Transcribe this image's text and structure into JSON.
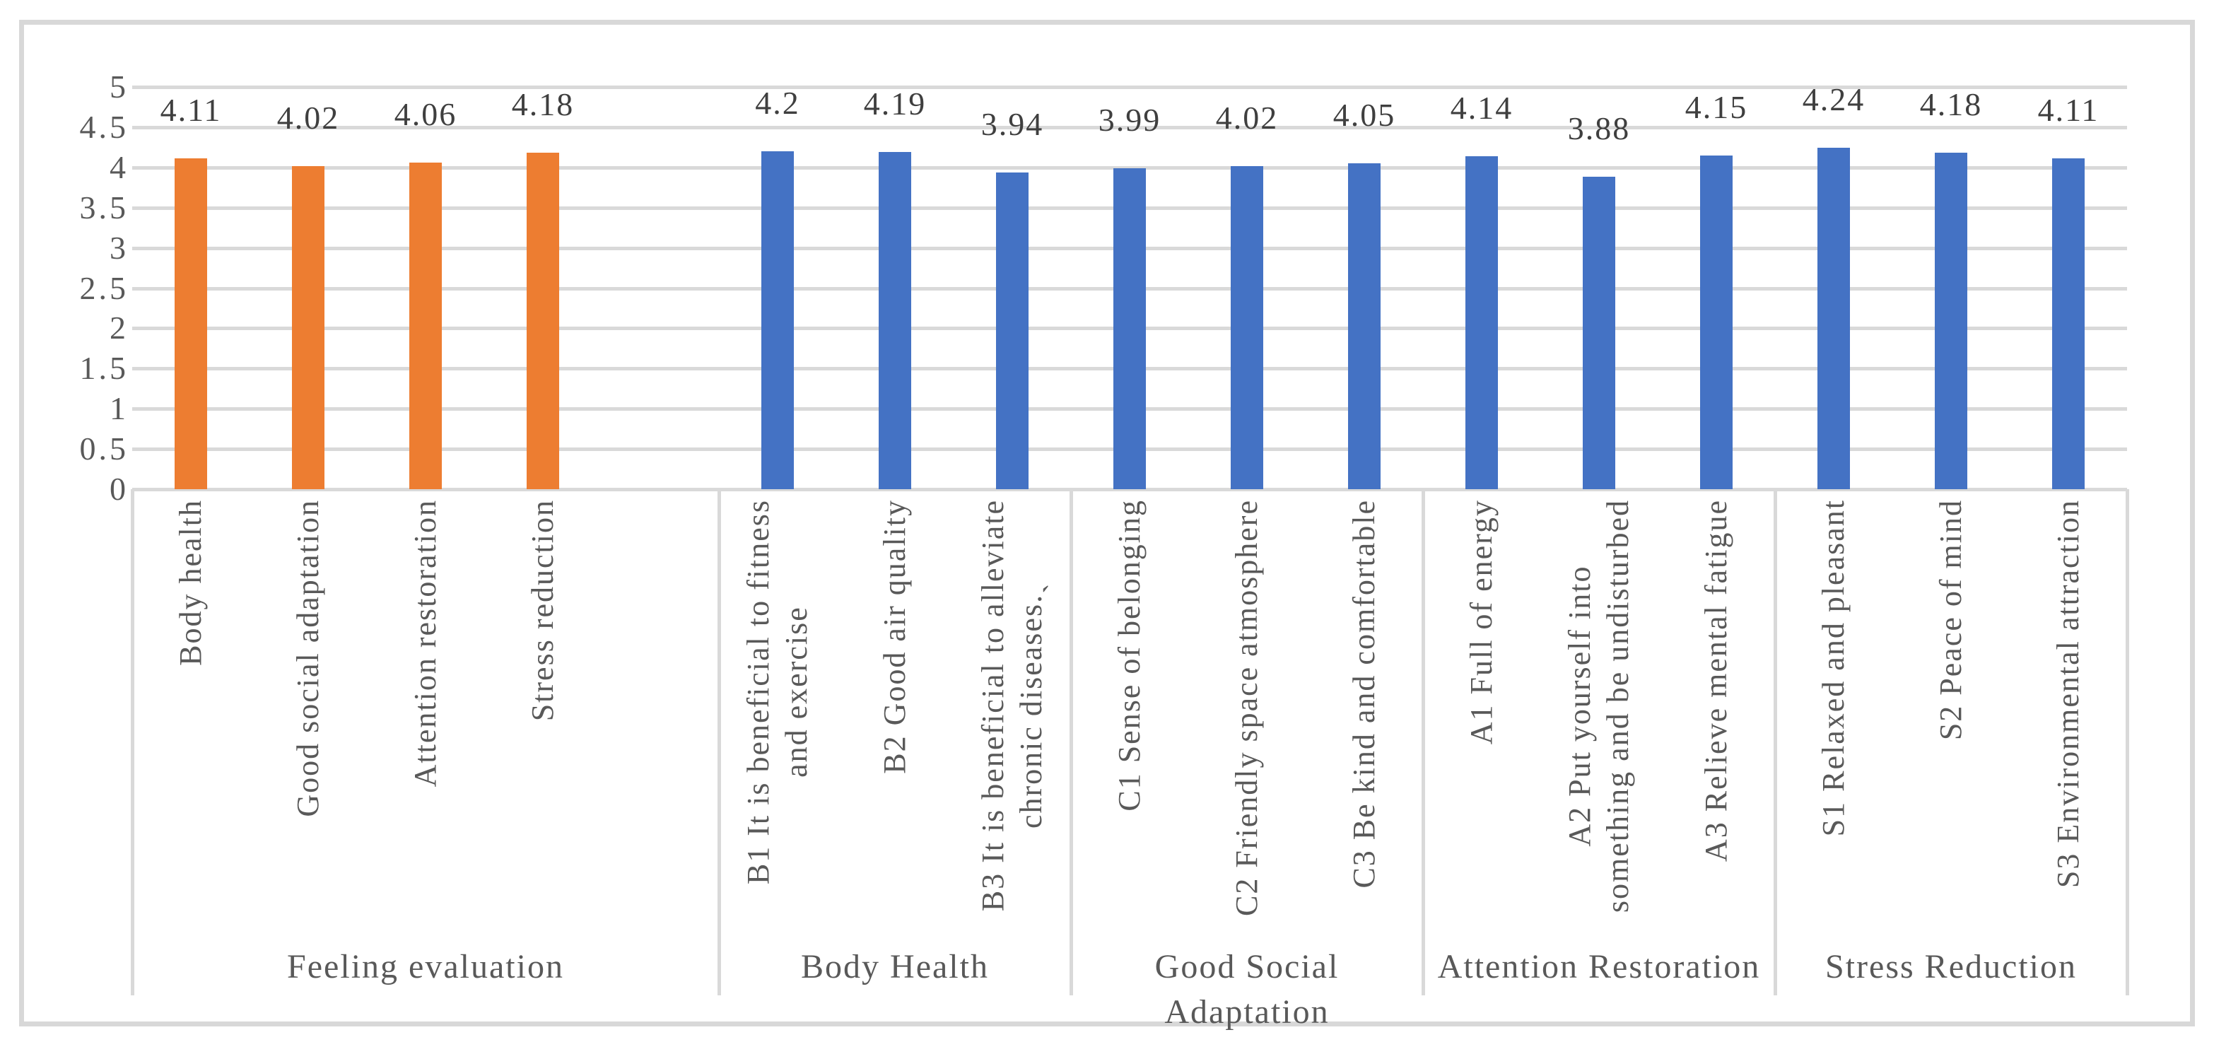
{
  "chart_data": {
    "type": "bar",
    "title": "",
    "legend": "none",
    "gridlines": true,
    "y_axis": {
      "min": 0,
      "max": 5,
      "step": 0.5,
      "tick_labels": [
        "0",
        "0.5",
        "1",
        "1.5",
        "2",
        "2.5",
        "3",
        "3.5",
        "4",
        "4.5",
        "5"
      ]
    },
    "colors": {
      "feeling_evaluation_series": "#ED7D31",
      "dimension_series": "#4472C4",
      "gridline": "#D9D9D9",
      "text": "#595959",
      "data_label_text": "#3F3F3F",
      "frame": "#D8D8D8"
    },
    "group_slot_counts": [
      5,
      3,
      3,
      3,
      3
    ],
    "groups": [
      {
        "label": "Feeling evaluation",
        "color": "#ED7D31",
        "items": [
          {
            "category": "Body health",
            "value": 4.11,
            "value_label": "4.11"
          },
          {
            "category": "Good social adaptation",
            "value": 4.02,
            "value_label": "4.02"
          },
          {
            "category": "Attention restoration",
            "value": 4.06,
            "value_label": "4.06"
          },
          {
            "category": "Stress reduction",
            "value": 4.18,
            "value_label": "4.18"
          }
        ]
      },
      {
        "label": "Body Health",
        "color": "#4472C4",
        "items": [
          {
            "category": "B1 It is beneficial to fitness\nand exercise",
            "value": 4.2,
            "value_label": "4.2"
          },
          {
            "category": "B2 Good air quality",
            "value": 4.19,
            "value_label": "4.19"
          },
          {
            "category": "B3 It is beneficial to alleviate\nchronic diseases.ˏ",
            "value": 3.94,
            "value_label": "3.94"
          }
        ]
      },
      {
        "label": "Good Social Adaptation",
        "color": "#4472C4",
        "items": [
          {
            "category": "C1 Sense of belonging",
            "value": 3.99,
            "value_label": "3.99"
          },
          {
            "category": "C2 Friendly space atmosphere",
            "value": 4.02,
            "value_label": "4.02"
          },
          {
            "category": "C3 Be kind and comfortable",
            "value": 4.05,
            "value_label": "4.05"
          }
        ]
      },
      {
        "label": "Attention Restoration",
        "color": "#4472C4",
        "items": [
          {
            "category": "A1 Full of energy",
            "value": 4.14,
            "value_label": "4.14"
          },
          {
            "category": "A2 Put yourself into\nsomething and be undisturbed",
            "value": 3.88,
            "value_label": "3.88"
          },
          {
            "category": "A3 Relieve mental fatigue",
            "value": 4.15,
            "value_label": "4.15"
          }
        ]
      },
      {
        "label": "Stress Reduction",
        "color": "#4472C4",
        "items": [
          {
            "category": "S1 Relaxed and pleasant",
            "value": 4.24,
            "value_label": "4.24"
          },
          {
            "category": "S2 Peace of mind",
            "value": 4.18,
            "value_label": "4.18"
          },
          {
            "category": "S3 Environmental attraction",
            "value": 4.11,
            "value_label": "4.11"
          }
        ]
      }
    ]
  }
}
